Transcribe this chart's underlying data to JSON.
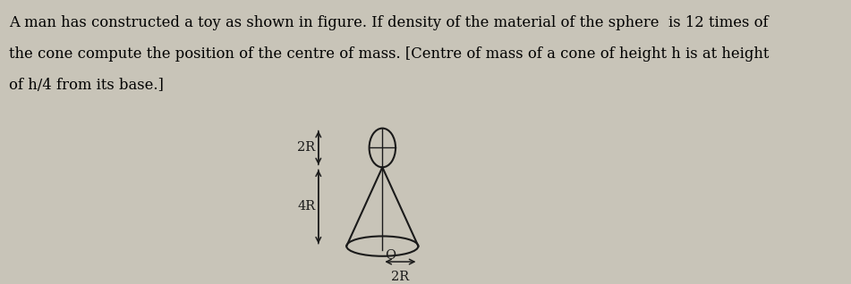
{
  "text_lines": [
    "A man has constructed a toy as shown in figure. If density of the material of the sphere  is 12 times of",
    "the cone compute the position of the centre of mass. [Centre of mass of a cone of height h is at height",
    "of h/4 from its base.]"
  ],
  "bg_color": "#c8c4b8",
  "text_fontsize": 11.8,
  "label_fontsize": 10.5,
  "line_color": "#1a1a1a",
  "label_2R_top": "2R",
  "label_4R": "4R",
  "label_O": "O",
  "label_2R_bottom": "2R"
}
